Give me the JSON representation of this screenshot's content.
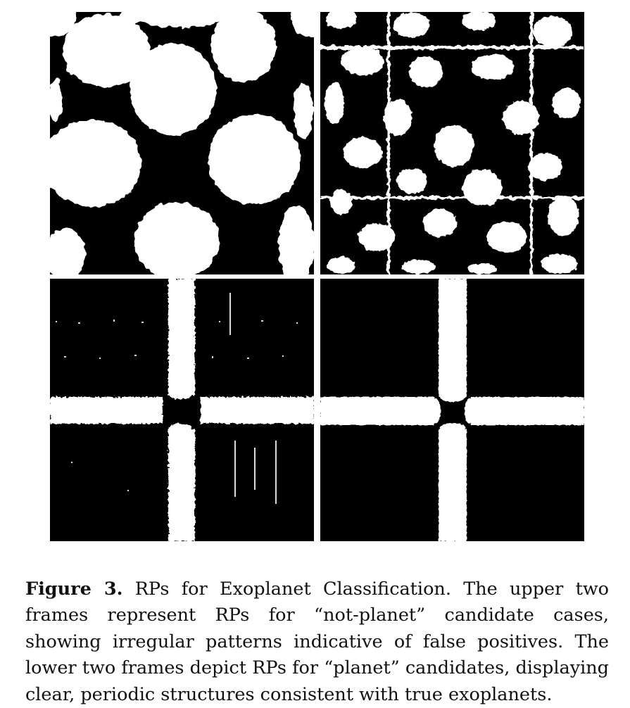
{
  "figure": {
    "label": "Figure 3.",
    "caption": "RPs for Exoplanet Classification. The upper two frames represent RPs for “not-planet” candidate cases, showing irregular patterns indicative of false positives. The lower two frames depict RPs for “planet” candidates, displaying clear, periodic structures consistent with true exoplanets.",
    "panels": [
      {
        "class": "not-planet",
        "style": "irregular"
      },
      {
        "class": "not-planet",
        "style": "irregular-dense"
      },
      {
        "class": "planet",
        "style": "periodic-cross"
      },
      {
        "class": "planet",
        "style": "periodic-cross-clean"
      }
    ],
    "colors": {
      "foreground": "#000000",
      "background": "#ffffff"
    }
  }
}
